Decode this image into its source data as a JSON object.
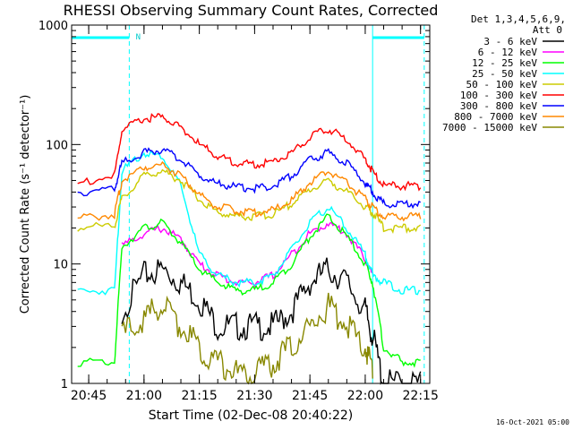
{
  "chart_data": {
    "type": "line",
    "title": "RHESSI Observing Summary Count Rates, Corrected",
    "xlabel": "Start Time (02-Dec-08 20:40:22)",
    "ylabel": "Corrected Count Rate (s⁻¹ detector⁻¹)",
    "y_scale": "log",
    "ylim": [
      1,
      1000
    ],
    "xlim": [
      "20:40:22",
      "22:17:30"
    ],
    "x_tick_labels": [
      "20:45",
      "21:00",
      "21:15",
      "21:30",
      "21:45",
      "22:00",
      "22:15"
    ],
    "y_tick_labels": [
      "1",
      "10",
      "100",
      "1000"
    ],
    "legend_header": [
      "Det 1,3,4,5,6,9,",
      "Att 0"
    ],
    "legend_position": "right, outside plot",
    "grid": false,
    "flag_label": "N",
    "flag_intervals": [
      [
        "20:40:22",
        "20:56:00"
      ],
      [
        "22:02:00",
        "22:16:00"
      ]
    ],
    "night_markers": [
      "20:56:00",
      "22:16:00"
    ],
    "x_samples": [
      "20:42:00",
      "20:52:00",
      "20:54:00",
      "21:00:00",
      "21:05:00",
      "21:10:00",
      "21:15:00",
      "21:20:00",
      "21:25:00",
      "21:30:00",
      "21:35:00",
      "21:40:00",
      "21:45:00",
      "21:50:00",
      "21:55:00",
      "22:00:00",
      "22:02:00",
      "22:05:00",
      "22:10:00",
      "22:15:00"
    ],
    "series": [
      {
        "name": "3 - 6 keV",
        "color": "#000000",
        "values": [
          null,
          null,
          4,
          8,
          9,
          7,
          5,
          3,
          3,
          3,
          3,
          4,
          7,
          9,
          7,
          4,
          2.5,
          1,
          1,
          1
        ]
      },
      {
        "name": "6 - 12 keV",
        "color": "#ff00ff",
        "values": [
          null,
          null,
          14,
          18,
          20,
          16,
          10,
          8,
          7,
          7,
          8,
          12,
          18,
          22,
          18,
          11,
          8,
          null,
          null,
          null
        ]
      },
      {
        "name": "12 - 25 keV",
        "color": "#00ff00",
        "values": [
          1.5,
          1.5,
          14,
          20,
          22,
          15,
          9,
          7,
          6,
          6,
          7,
          10,
          17,
          25,
          17,
          10,
          7,
          2,
          1.5,
          1.5
        ]
      },
      {
        "name": "25 - 50 keV",
        "color": "#00ffff",
        "values": [
          6,
          6,
          60,
          85,
          80,
          45,
          12,
          8,
          7,
          7,
          8,
          13,
          22,
          30,
          20,
          12,
          8,
          7,
          6,
          6
        ]
      },
      {
        "name": "50 - 100 keV",
        "color": "#cccc00",
        "values": [
          20,
          21,
          35,
          55,
          60,
          50,
          35,
          27,
          25,
          25,
          26,
          32,
          42,
          50,
          40,
          30,
          27,
          20,
          20,
          20
        ]
      },
      {
        "name": "100 - 300 keV",
        "color": "#ff0000",
        "values": [
          47,
          55,
          130,
          165,
          170,
          140,
          100,
          80,
          70,
          68,
          72,
          85,
          115,
          135,
          110,
          75,
          60,
          45,
          45,
          45
        ]
      },
      {
        "name": "300 - 800 keV",
        "color": "#0000ff",
        "values": [
          40,
          42,
          70,
          85,
          90,
          75,
          55,
          47,
          44,
          43,
          45,
          55,
          75,
          85,
          70,
          48,
          40,
          32,
          32,
          32
        ]
      },
      {
        "name": "800 - 7000 keV",
        "color": "#ff8800",
        "values": [
          24,
          26,
          50,
          65,
          68,
          55,
          38,
          30,
          28,
          27,
          28,
          34,
          48,
          60,
          48,
          35,
          30,
          25,
          25,
          25
        ]
      },
      {
        "name": "7000 - 15000 keV",
        "color": "#888800",
        "values": [
          null,
          null,
          2.5,
          3.5,
          4.5,
          3,
          2,
          1.5,
          1.2,
          1.2,
          1.5,
          2,
          3,
          4.5,
          3,
          2,
          1.3,
          null,
          null,
          null
        ]
      }
    ]
  },
  "footer": {
    "timestamp": "16-Oct-2021 05:00"
  }
}
